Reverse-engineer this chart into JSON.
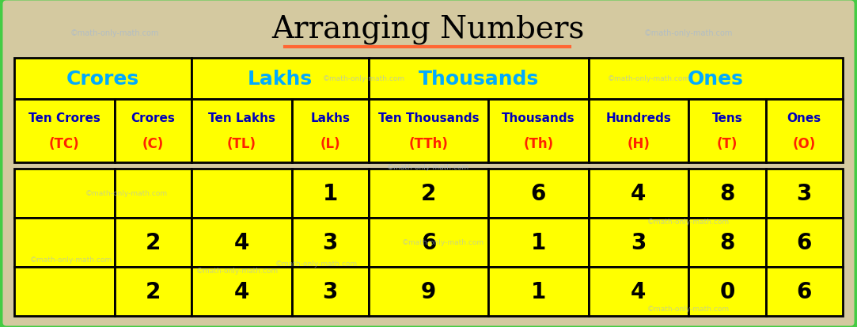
{
  "title": "Arranging Numbers",
  "title_fontsize": 28,
  "title_color": "#000000",
  "underline_color": "#FF6633",
  "background_color": "#D4C9A0",
  "outer_border_color": "#44CC44",
  "cell_bg_color": "#FFFF00",
  "cell_border_color": "#000000",
  "watermark_text": "©math-only-math.com",
  "watermark_color": "#AABBCC",
  "group_headers": [
    "Crores",
    "Lakhs",
    "Thousands",
    "Ones"
  ],
  "group_header_color": "#00AAFF",
  "group_spans": [
    2,
    2,
    2,
    3
  ],
  "col_headers_top": [
    "Ten Crores",
    "Crores",
    "Ten Lakhs",
    "Lakhs",
    "Ten Thousands",
    "Thousands",
    "Hundreds",
    "Tens",
    "Ones"
  ],
  "col_headers_bot": [
    "(TC)",
    "(C)",
    "(TL)",
    "(L)",
    "(TTh)",
    "(Th)",
    "(H)",
    "(T)",
    "(O)"
  ],
  "col_header_top_color": "#0000BB",
  "col_header_bottom_color": "#FF2200",
  "data_rows": [
    [
      "",
      "",
      "",
      "1",
      "2",
      "6",
      "4",
      "8",
      "3"
    ],
    [
      "",
      "2",
      "4",
      "3",
      "6",
      "1",
      "3",
      "8",
      "6"
    ],
    [
      "",
      "2",
      "4",
      "3",
      "9",
      "1",
      "4",
      "0",
      "6"
    ]
  ],
  "data_color": "#000000",
  "data_fontsize": 20,
  "col_widths_rel": [
    1.3,
    1.0,
    1.3,
    1.0,
    1.55,
    1.3,
    1.3,
    1.0,
    1.0
  ]
}
